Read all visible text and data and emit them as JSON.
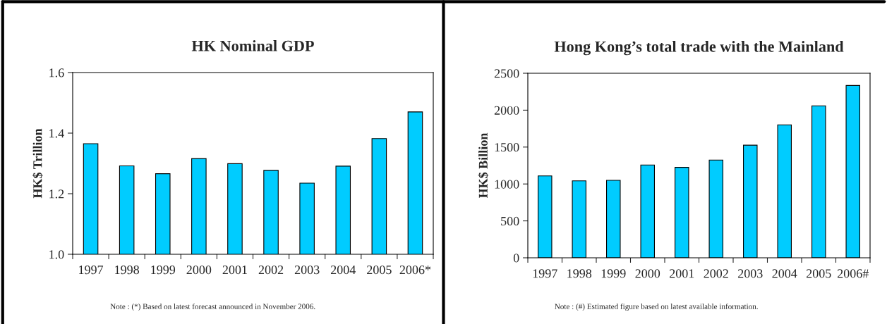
{
  "chart_data": [
    {
      "type": "bar",
      "title": "HK Nominal GDP",
      "ylabel": "HK$ Trillion",
      "categories": [
        "1997",
        "1998",
        "1999",
        "2000",
        "2001",
        "2002",
        "2003",
        "2004",
        "2005",
        "2006*"
      ],
      "values": [
        1.365,
        1.292,
        1.266,
        1.316,
        1.299,
        1.277,
        1.235,
        1.291,
        1.382,
        1.47
      ],
      "color": "#00ccff",
      "ylim": [
        1.0,
        1.6
      ],
      "yticks": [
        {
          "value": 1.0,
          "label": "1.0"
        },
        1.2,
        1.4,
        1.6
      ],
      "grid": false,
      "legend": false,
      "annotations": [
        "Note : (*) Based on latest forecast announced in November 2006."
      ]
    },
    {
      "type": "bar",
      "title": "Hong Kong’s total trade with the Mainland",
      "ylabel": "HK$ Billion",
      "categories": [
        "1997",
        "1998",
        "1999",
        "2000",
        "2001",
        "2002",
        "2003",
        "2004",
        "2005",
        "2006#"
      ],
      "values": [
        1109,
        1042,
        1049,
        1257,
        1225,
        1324,
        1525,
        1801,
        2059,
        2334
      ],
      "color": "#00ccff",
      "ylim": [
        0,
        2500
      ],
      "yticks": [
        0,
        500,
        1000,
        1500,
        2000,
        2500
      ],
      "grid": false,
      "legend": false,
      "annotations": [
        "Note : (#) Estimated figure based on latest available information."
      ]
    }
  ]
}
